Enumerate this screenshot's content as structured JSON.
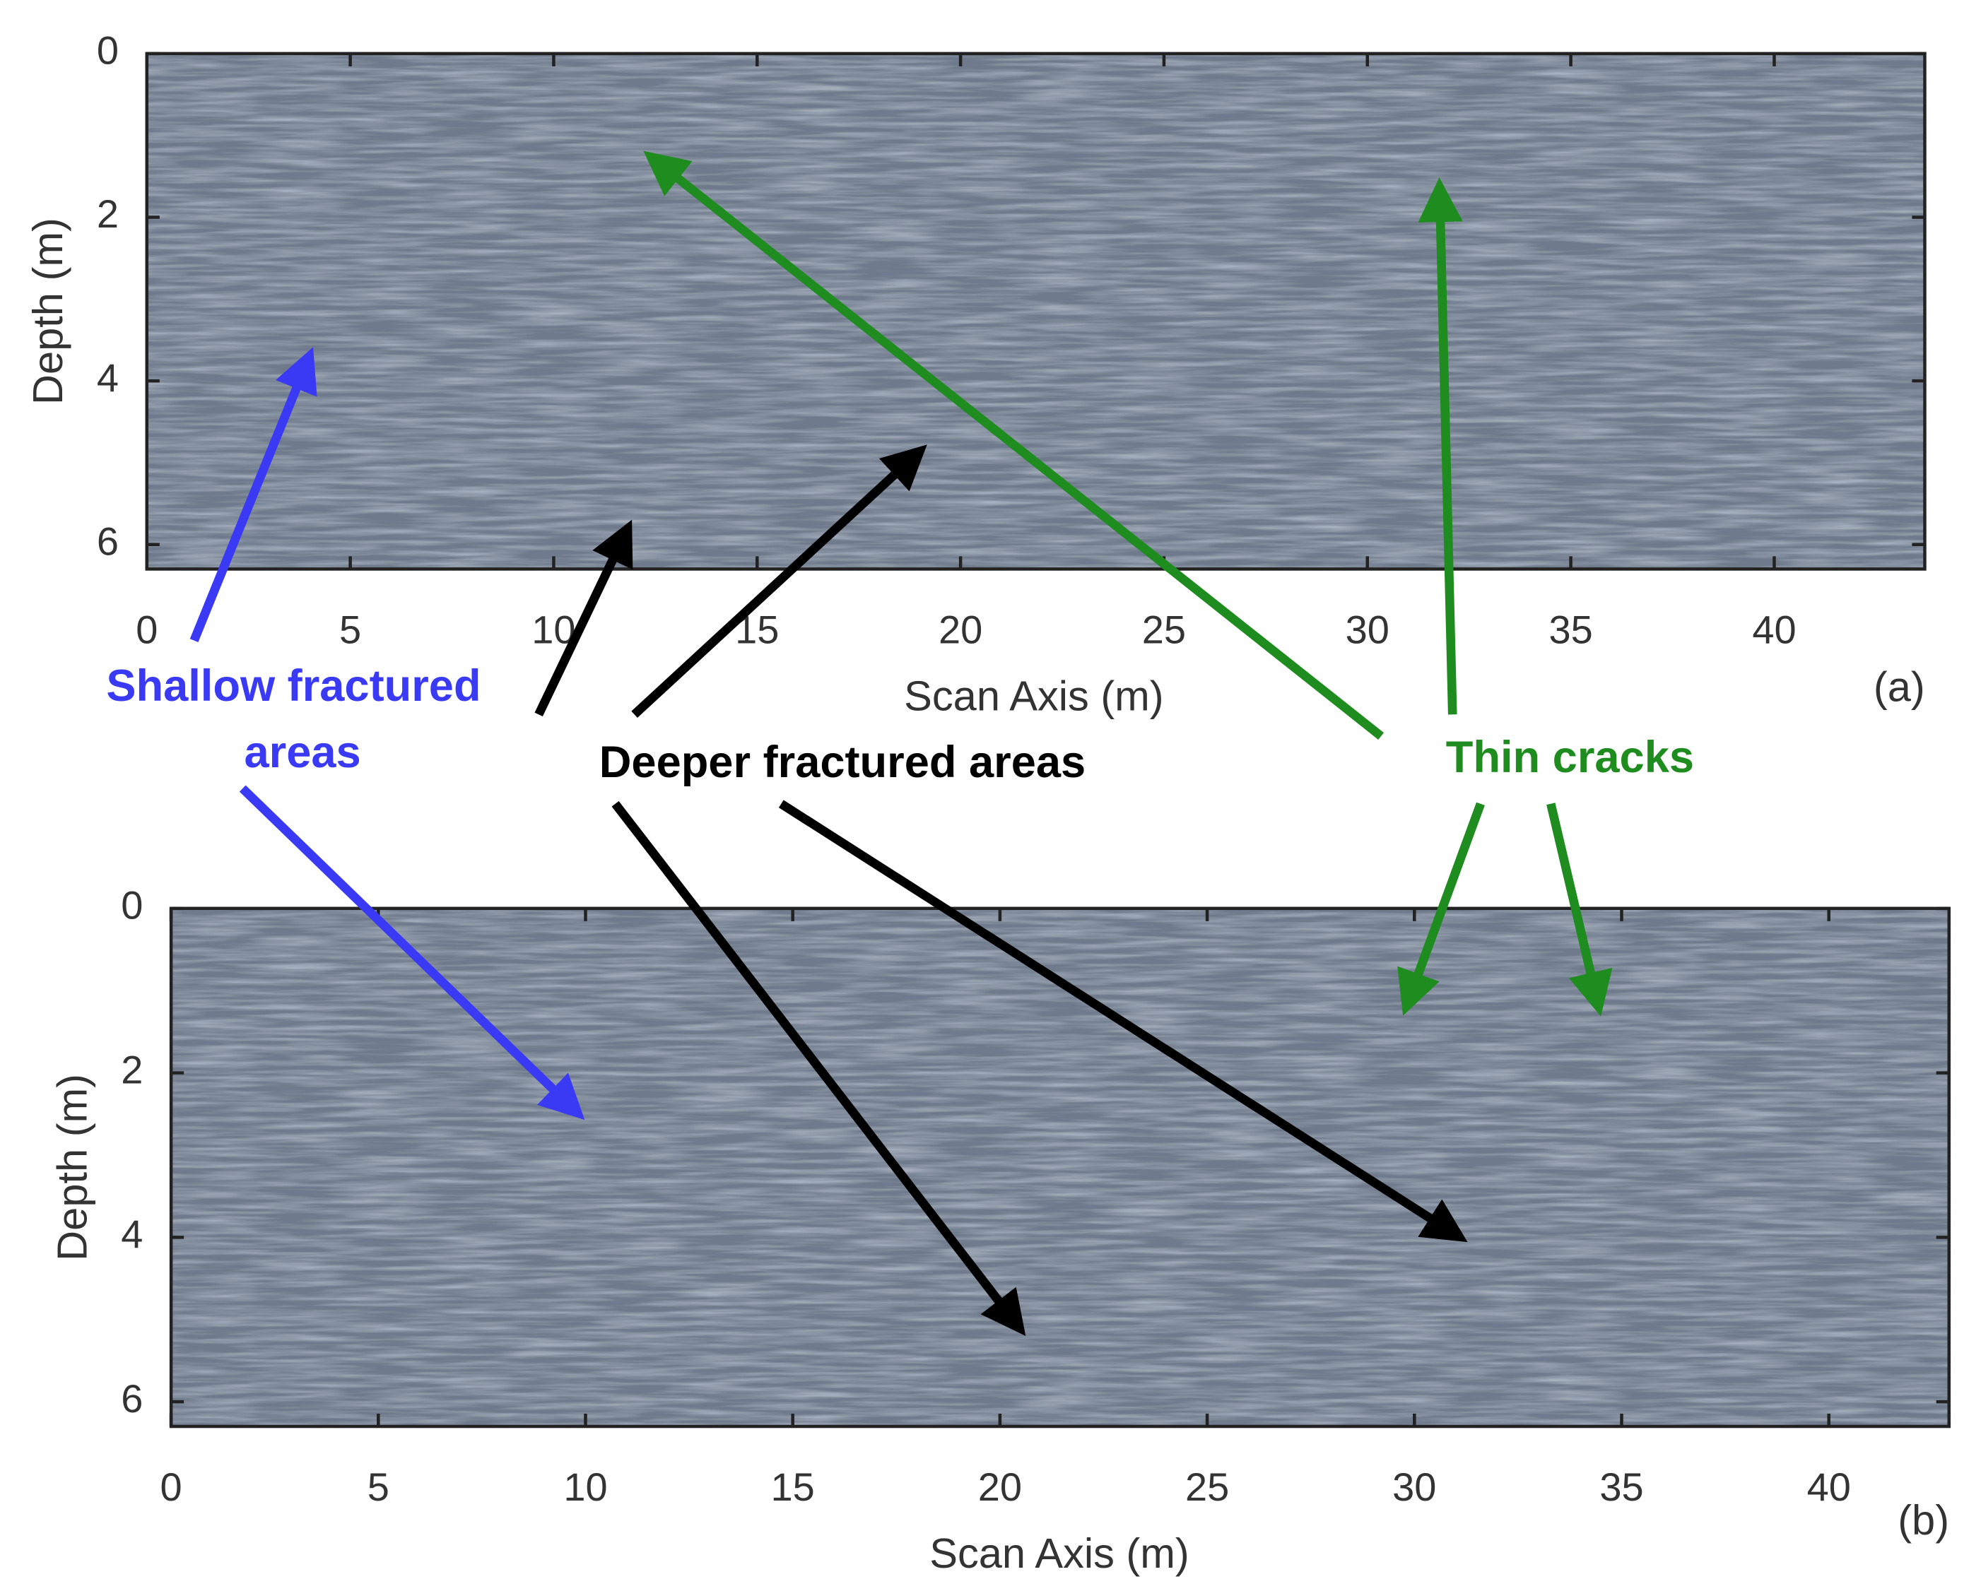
{
  "chart_data": [
    {
      "type": "image",
      "panel_label": "(a)",
      "xlabel": "Scan Axis (m)",
      "ylabel": "Depth (m)",
      "xlim": [
        0,
        43.7
      ],
      "ylim": [
        6.3,
        0
      ],
      "xticks": [
        0,
        5,
        10,
        15,
        20,
        25,
        30,
        35,
        40
      ],
      "yticks": [
        0,
        2,
        4,
        6
      ],
      "color": "#6f7b8c"
    },
    {
      "type": "image",
      "panel_label": "(b)",
      "xlabel": "Scan Axis (m)",
      "ylabel": "Depth (m)",
      "xlim": [
        0,
        42.9
      ],
      "ylim": [
        6.3,
        0
      ],
      "xticks": [
        0,
        5,
        10,
        15,
        20,
        25,
        30,
        35,
        40
      ],
      "yticks": [
        0,
        2,
        4,
        6
      ],
      "color": "#6f7b8c"
    }
  ],
  "annotations": [
    {
      "lines": [
        "Shallow fractured",
        "areas"
      ],
      "color": "#3a3af5"
    },
    {
      "lines": [
        "Deeper fractured areas"
      ],
      "color": "#000000"
    },
    {
      "lines": [
        "Thin cracks"
      ],
      "color": "#1e8c1e"
    }
  ]
}
